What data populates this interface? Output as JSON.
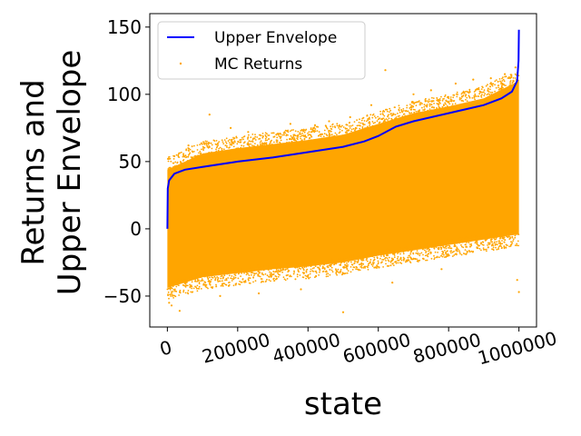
{
  "chart_data": {
    "type": "scatter",
    "xlabel": "state",
    "ylabel_lines": [
      "Returns and",
      "Upper Envelope"
    ],
    "xlim": [
      -50000,
      1050000
    ],
    "ylim": [
      -73,
      160
    ],
    "x_ticks": [
      0,
      200000,
      400000,
      600000,
      800000,
      1000000
    ],
    "x_tick_labels": [
      "0",
      "200000",
      "400000",
      "600000",
      "800000",
      "1000000"
    ],
    "x_tick_rotation_deg": 15,
    "y_ticks": [
      -50,
      0,
      50,
      100,
      150
    ],
    "y_tick_labels": [
      "−50",
      "0",
      "50",
      "100",
      "150"
    ],
    "grid": false,
    "legend_position": "top-left",
    "series": [
      {
        "name": "Upper Envelope",
        "kind": "line",
        "color": "#0000ff",
        "x": [
          0,
          1000,
          5000,
          20000,
          50000,
          100000,
          200000,
          300000,
          400000,
          500000,
          560000,
          600000,
          650000,
          700000,
          800000,
          900000,
          950000,
          980000,
          995000,
          999000,
          1000000
        ],
        "y": [
          0,
          30,
          36,
          41,
          44,
          46,
          50,
          53,
          57,
          61,
          65,
          69,
          76,
          80,
          86,
          92,
          97,
          102,
          110,
          125,
          148
        ]
      },
      {
        "name": "MC Returns",
        "kind": "scatter",
        "color": "#ffa500",
        "band_x": [
          0,
          100000,
          200000,
          300000,
          400000,
          500000,
          600000,
          700000,
          800000,
          900000,
          1000000
        ],
        "band_upper": [
          44,
          56,
          60,
          63,
          66,
          70,
          78,
          86,
          91,
          97,
          110
        ],
        "band_lower": [
          -44,
          -36,
          -33,
          -30,
          -28,
          -25,
          -20,
          -16,
          -12,
          -8,
          -4
        ],
        "outliers": [
          [
            2000,
            52
          ],
          [
            5000,
            -55
          ],
          [
            12000,
            -57
          ],
          [
            20000,
            54
          ],
          [
            35000,
            -61
          ],
          [
            60000,
            62
          ],
          [
            120000,
            85
          ],
          [
            150000,
            -50
          ],
          [
            180000,
            75
          ],
          [
            230000,
            72
          ],
          [
            260000,
            -48
          ],
          [
            310000,
            70
          ],
          [
            350000,
            78
          ],
          [
            380000,
            -45
          ],
          [
            420000,
            77
          ],
          [
            460000,
            80
          ],
          [
            500000,
            -62
          ],
          [
            520000,
            83
          ],
          [
            580000,
            92
          ],
          [
            620000,
            118
          ],
          [
            640000,
            -40
          ],
          [
            700000,
            100
          ],
          [
            750000,
            103
          ],
          [
            780000,
            -30
          ],
          [
            820000,
            108
          ],
          [
            870000,
            111
          ],
          [
            920000,
            112
          ],
          [
            960000,
            115
          ],
          [
            990000,
            120
          ],
          [
            995000,
            -38
          ],
          [
            1000000,
            -47
          ]
        ]
      }
    ]
  }
}
